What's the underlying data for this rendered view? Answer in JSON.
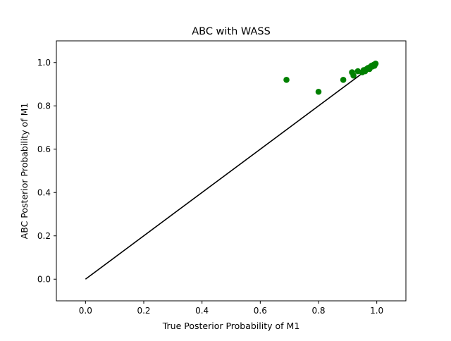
{
  "chart_data": {
    "type": "scatter",
    "title": "ABC with WASS",
    "xlabel": "True Posterior Probability of M1",
    "ylabel": "ABC Posterior Probability of M1",
    "xlim": [
      -0.1,
      1.1
    ],
    "ylim": [
      -0.1,
      1.1
    ],
    "xticks": [
      0.0,
      0.2,
      0.4,
      0.6,
      0.8,
      1.0
    ],
    "xtick_labels": [
      "0.0",
      "0.2",
      "0.4",
      "0.6",
      "0.8",
      "1.0"
    ],
    "yticks": [
      0.0,
      0.2,
      0.4,
      0.6,
      0.8,
      1.0
    ],
    "ytick_labels": [
      "0.0",
      "0.2",
      "0.4",
      "0.6",
      "0.8",
      "1.0"
    ],
    "grid": false,
    "series": [
      {
        "kind": "scatter",
        "color": "#008000",
        "points": [
          [
            0.69,
            0.92
          ],
          [
            0.8,
            0.865
          ],
          [
            0.885,
            0.92
          ],
          [
            0.915,
            0.955
          ],
          [
            0.92,
            0.94
          ],
          [
            0.935,
            0.96
          ],
          [
            0.95,
            0.955
          ],
          [
            0.955,
            0.965
          ],
          [
            0.96,
            0.96
          ],
          [
            0.965,
            0.97
          ],
          [
            0.97,
            0.975
          ],
          [
            0.975,
            0.97
          ],
          [
            0.978,
            0.98
          ],
          [
            0.982,
            0.985
          ],
          [
            0.985,
            0.982
          ],
          [
            0.988,
            0.988
          ],
          [
            0.99,
            0.99
          ],
          [
            0.992,
            0.985
          ],
          [
            0.994,
            0.992
          ],
          [
            0.996,
            0.995
          ]
        ]
      },
      {
        "kind": "line",
        "color": "#000000",
        "points": [
          [
            0.0,
            0.0
          ],
          [
            0.97,
            0.97
          ]
        ]
      }
    ]
  }
}
